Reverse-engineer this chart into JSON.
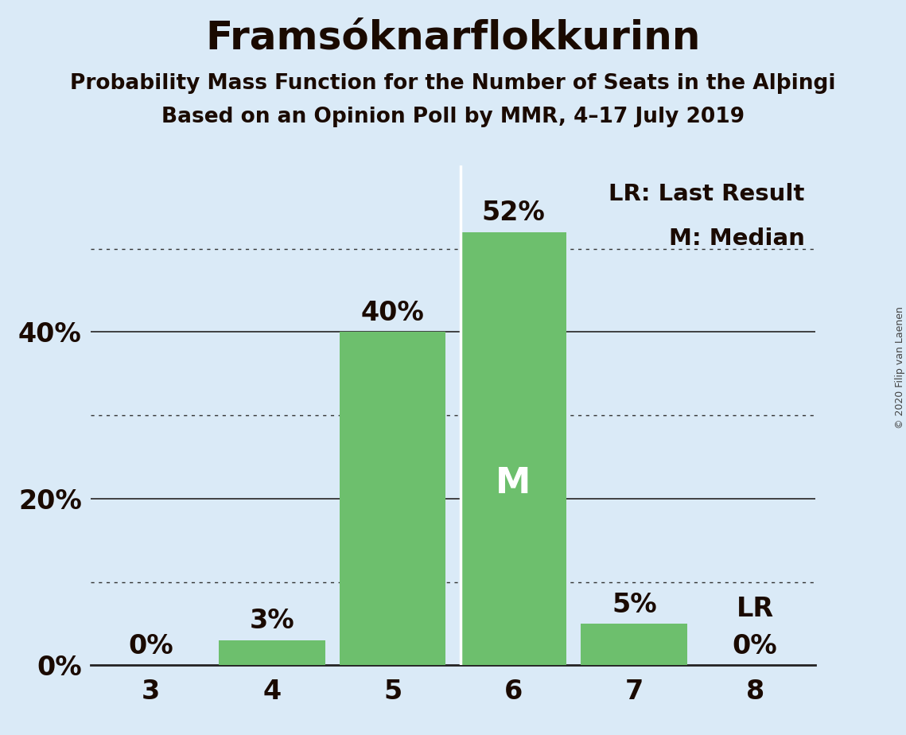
{
  "title": "Framsóknarflokkurinn",
  "subtitle1": "Probability Mass Function for the Number of Seats in the Alþingi",
  "subtitle2": "Based on an Opinion Poll by MMR, 4–17 July 2019",
  "copyright": "© 2020 Filip van Laenen",
  "seats": [
    3,
    4,
    5,
    6,
    7,
    8
  ],
  "probabilities": [
    0.0,
    0.03,
    0.4,
    0.52,
    0.05,
    0.0
  ],
  "bar_color": "#6dbf6d",
  "background_color": "#daeaf7",
  "median_seat": 6,
  "lr_seat": 8,
  "lr_label": "LR",
  "median_label": "M",
  "legend_lr": "LR: Last Result",
  "legend_m": "M: Median",
  "xlim": [
    2.5,
    8.5
  ],
  "ylim": [
    0.0,
    0.6
  ],
  "yticks": [
    0.0,
    0.2,
    0.4
  ],
  "ytick_labels": [
    "0%",
    "20%",
    "40%"
  ],
  "solid_gridlines": [
    0.2,
    0.4
  ],
  "dotted_gridlines": [
    0.1,
    0.3,
    0.5
  ],
  "bar_width": 0.88,
  "title_fontsize": 36,
  "subtitle_fontsize": 19,
  "tick_fontsize": 24,
  "legend_fontsize": 21,
  "pct_label_fontsize": 24,
  "median_marker_fontsize": 32,
  "white_line_color": "#ffffff",
  "gridline_color_solid": "#333333",
  "gridline_color_dotted": "#333333",
  "spine_color": "#222222",
  "text_color": "#1a0a00",
  "copyright_color": "#444444"
}
